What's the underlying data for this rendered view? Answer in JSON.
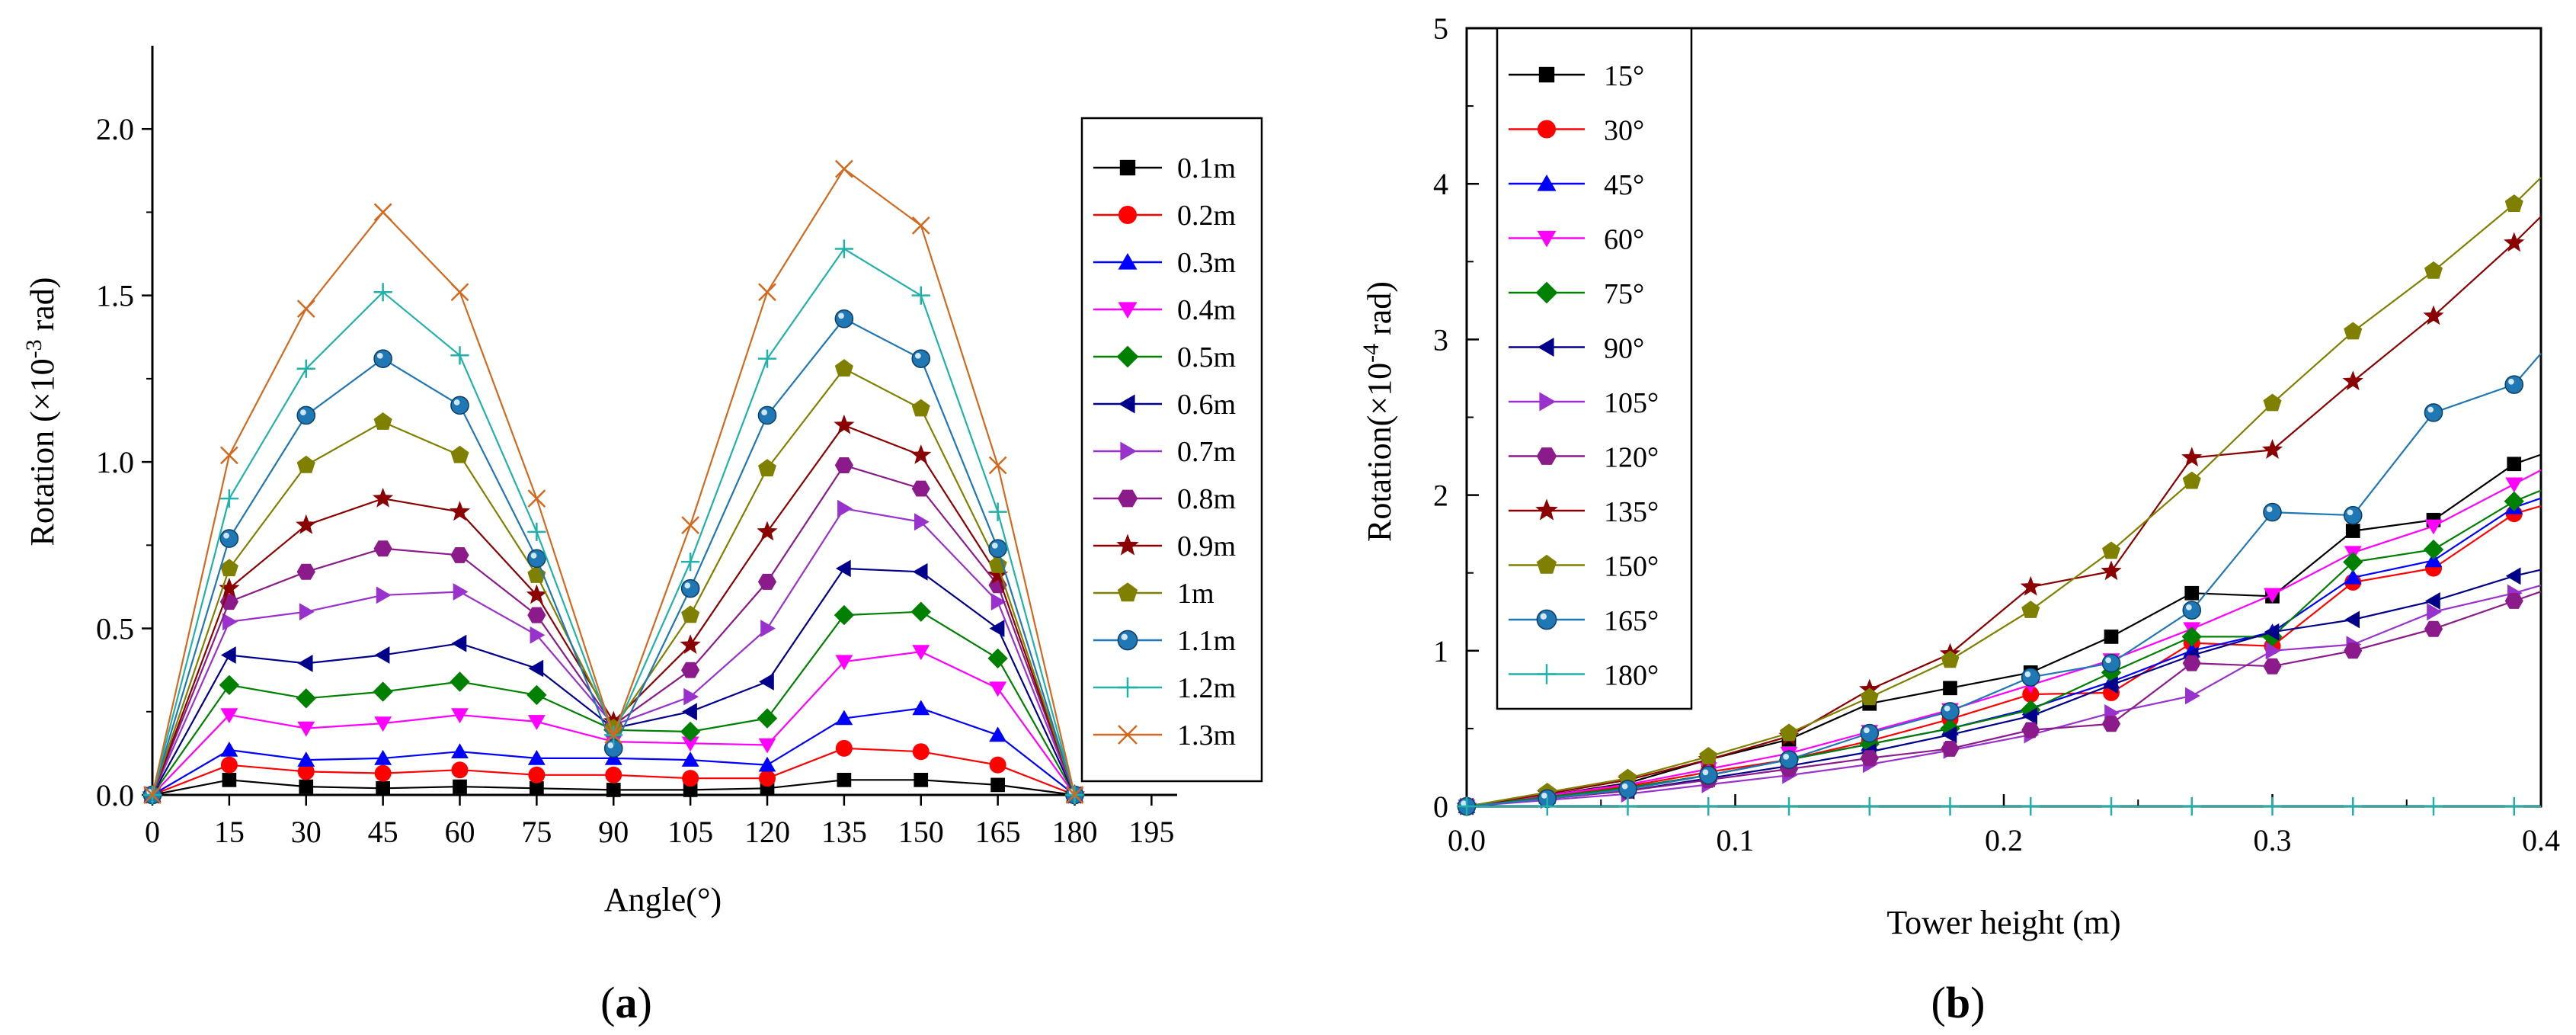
{
  "chart_data": [
    {
      "panel": "a",
      "type": "line",
      "xlabel": "Angle(°)",
      "ylabel_pre": "Rotation (×10",
      "ylabel_exp": "-3",
      "ylabel_post": " rad)",
      "xlim": [
        0,
        200
      ],
      "ylim": [
        0,
        2.25
      ],
      "xticks": [
        0,
        15,
        30,
        45,
        60,
        75,
        90,
        105,
        120,
        135,
        150,
        165,
        180,
        195
      ],
      "xtick_labels": [
        "0",
        "15",
        "30",
        "45",
        "60",
        "75",
        "90",
        "105",
        "120",
        "135",
        "150",
        "165",
        "180",
        "195"
      ],
      "yticks": [
        0,
        0.5,
        1.0,
        1.5,
        2.0
      ],
      "ytick_labels": [
        "0.0",
        "0.5",
        "1.0",
        "1.5",
        "2.0"
      ],
      "legend_position": "right",
      "x": [
        0,
        15,
        30,
        45,
        60,
        75,
        90,
        105,
        120,
        135,
        150,
        165,
        180
      ],
      "series": [
        {
          "name": "0.1m",
          "color": "#000000",
          "marker": "square",
          "values": [
            0,
            0.045,
            0.025,
            0.02,
            0.025,
            0.02,
            0.015,
            0.015,
            0.02,
            0.045,
            0.045,
            0.03,
            0
          ]
        },
        {
          "name": "0.2m",
          "color": "#ff0000",
          "marker": "circle",
          "values": [
            0,
            0.09,
            0.07,
            0.065,
            0.075,
            0.06,
            0.06,
            0.05,
            0.05,
            0.14,
            0.13,
            0.09,
            0
          ]
        },
        {
          "name": "0.3m",
          "color": "#0000ff",
          "marker": "triangle-up",
          "values": [
            0,
            0.135,
            0.105,
            0.11,
            0.13,
            0.11,
            0.11,
            0.105,
            0.09,
            0.23,
            0.26,
            0.18,
            0
          ]
        },
        {
          "name": "0.4m",
          "color": "#ff00ff",
          "marker": "triangle-down",
          "values": [
            0,
            0.24,
            0.2,
            0.215,
            0.24,
            0.22,
            0.16,
            0.155,
            0.15,
            0.4,
            0.43,
            0.32,
            0
          ]
        },
        {
          "name": "0.5m",
          "color": "#008000",
          "marker": "diamond",
          "values": [
            0,
            0.33,
            0.29,
            0.31,
            0.34,
            0.3,
            0.195,
            0.19,
            0.23,
            0.54,
            0.55,
            0.41,
            0
          ]
        },
        {
          "name": "0.6m",
          "color": "#00008b",
          "marker": "triangle-left",
          "values": [
            0,
            0.42,
            0.395,
            0.42,
            0.455,
            0.38,
            0.2,
            0.25,
            0.34,
            0.68,
            0.67,
            0.5,
            0
          ]
        },
        {
          "name": "0.7m",
          "color": "#9932cc",
          "marker": "triangle-right",
          "values": [
            0,
            0.52,
            0.55,
            0.6,
            0.61,
            0.48,
            0.21,
            0.295,
            0.5,
            0.86,
            0.82,
            0.58,
            0
          ]
        },
        {
          "name": "0.8m",
          "color": "#8b1a8b",
          "marker": "hexagon",
          "values": [
            0,
            0.58,
            0.67,
            0.74,
            0.72,
            0.54,
            0.21,
            0.375,
            0.64,
            0.99,
            0.92,
            0.63,
            0
          ]
        },
        {
          "name": "0.9m",
          "color": "#8b0000",
          "marker": "star",
          "values": [
            0,
            0.62,
            0.81,
            0.89,
            0.85,
            0.6,
            0.22,
            0.45,
            0.79,
            1.11,
            1.02,
            0.66,
            0
          ]
        },
        {
          "name": "1m",
          "color": "#808000",
          "marker": "pentagon",
          "values": [
            0,
            0.68,
            0.99,
            1.12,
            1.02,
            0.66,
            0.2,
            0.54,
            0.98,
            1.28,
            1.16,
            0.69,
            0
          ]
        },
        {
          "name": "1.1m",
          "color": "#1f77b4",
          "marker": "sphere",
          "values": [
            0,
            0.77,
            1.14,
            1.31,
            1.17,
            0.71,
            0.14,
            0.62,
            1.14,
            1.43,
            1.31,
            0.74,
            0
          ]
        },
        {
          "name": "1.2m",
          "color": "#20b2aa",
          "marker": "plus",
          "values": [
            0,
            0.89,
            1.28,
            1.51,
            1.32,
            0.79,
            0.18,
            0.7,
            1.31,
            1.64,
            1.5,
            0.85,
            0
          ]
        },
        {
          "name": "1.3m",
          "color": "#d2691e",
          "marker": "x",
          "values": [
            0,
            1.02,
            1.46,
            1.75,
            1.51,
            0.89,
            0.18,
            0.81,
            1.51,
            1.88,
            1.71,
            0.99,
            0
          ]
        }
      ]
    },
    {
      "panel": "b",
      "type": "line",
      "xlabel": "Tower height (m)",
      "ylabel_pre": "Rotation(×10",
      "ylabel_exp": "-4",
      "ylabel_post": " rad)",
      "xlim": [
        0,
        0.4
      ],
      "ylim": [
        0,
        5
      ],
      "xticks": [
        0,
        0.1,
        0.2,
        0.3,
        0.4
      ],
      "xtick_labels": [
        "0.0",
        "0.1",
        "0.2",
        "0.3",
        "0.4"
      ],
      "yticks": [
        0,
        1,
        2,
        3,
        4,
        5
      ],
      "ytick_labels": [
        "0",
        "1",
        "2",
        "3",
        "4",
        "5"
      ],
      "legend_position": "top-left",
      "x": [
        0,
        0.03,
        0.06,
        0.09,
        0.12,
        0.15,
        0.18,
        0.21,
        0.24,
        0.27,
        0.3,
        0.33,
        0.36,
        0.39,
        0.4
      ],
      "series": [
        {
          "name": "15°",
          "color": "#000000",
          "marker": "square",
          "values": [
            0,
            0.07,
            0.15,
            0.3,
            0.43,
            0.66,
            0.76,
            0.86,
            1.09,
            1.37,
            1.35,
            1.77,
            1.84,
            2.2,
            2.26
          ]
        },
        {
          "name": "30°",
          "color": "#ff0000",
          "marker": "circle",
          "values": [
            0,
            0.06,
            0.13,
            0.22,
            0.3,
            0.42,
            0.56,
            0.72,
            0.73,
            1.05,
            1.03,
            1.44,
            1.53,
            1.88,
            1.93
          ]
        },
        {
          "name": "45°",
          "color": "#0000ff",
          "marker": "triangle-up",
          "values": [
            0,
            0.06,
            0.12,
            0.2,
            0.3,
            0.4,
            0.5,
            0.63,
            0.8,
            1.0,
            1.12,
            1.47,
            1.58,
            1.92,
            1.98
          ]
        },
        {
          "name": "60°",
          "color": "#ff00ff",
          "marker": "triangle-down",
          "values": [
            0,
            0.07,
            0.14,
            0.24,
            0.34,
            0.48,
            0.62,
            0.78,
            0.94,
            1.14,
            1.36,
            1.63,
            1.8,
            2.07,
            2.16
          ]
        },
        {
          "name": "75°",
          "color": "#008000",
          "marker": "diamond",
          "values": [
            0,
            0.06,
            0.12,
            0.2,
            0.3,
            0.4,
            0.5,
            0.62,
            0.86,
            1.09,
            1.09,
            1.57,
            1.65,
            1.96,
            2.03
          ]
        },
        {
          "name": "90°",
          "color": "#00008b",
          "marker": "triangle-left",
          "values": [
            0,
            0.05,
            0.1,
            0.18,
            0.26,
            0.35,
            0.46,
            0.58,
            0.78,
            0.97,
            1.12,
            1.2,
            1.32,
            1.48,
            1.52
          ]
        },
        {
          "name": "105°",
          "color": "#9932cc",
          "marker": "triangle-right",
          "values": [
            0,
            0.04,
            0.08,
            0.14,
            0.2,
            0.27,
            0.36,
            0.46,
            0.6,
            0.71,
            1.0,
            1.04,
            1.25,
            1.37,
            1.42
          ]
        },
        {
          "name": "120°",
          "color": "#8b1a8b",
          "marker": "hexagon",
          "values": [
            0,
            0.05,
            0.1,
            0.17,
            0.24,
            0.31,
            0.37,
            0.49,
            0.53,
            0.92,
            0.9,
            1.0,
            1.14,
            1.32,
            1.38
          ]
        },
        {
          "name": "135°",
          "color": "#8b0000",
          "marker": "star",
          "values": [
            0,
            0.08,
            0.17,
            0.3,
            0.45,
            0.75,
            0.98,
            1.41,
            1.51,
            2.24,
            2.29,
            2.73,
            3.15,
            3.62,
            3.79
          ]
        },
        {
          "name": "150°",
          "color": "#808000",
          "marker": "pentagon",
          "values": [
            0,
            0.09,
            0.18,
            0.32,
            0.47,
            0.7,
            0.94,
            1.26,
            1.64,
            2.09,
            2.59,
            3.05,
            3.44,
            3.87,
            4.04
          ]
        },
        {
          "name": "165°",
          "color": "#1f77b4",
          "marker": "sphere",
          "values": [
            0,
            0.05,
            0.11,
            0.2,
            0.3,
            0.47,
            0.61,
            0.83,
            0.92,
            1.26,
            1.89,
            1.87,
            2.53,
            2.71,
            2.91
          ]
        },
        {
          "name": "180°",
          "color": "#20b2aa",
          "marker": "plus",
          "values": [
            0,
            0,
            0,
            0,
            0,
            0,
            0,
            0,
            0,
            0,
            0,
            0,
            0,
            0,
            0
          ]
        }
      ]
    }
  ],
  "panels": {
    "a": {
      "label": "a",
      "open": "(",
      "close": ")"
    },
    "b": {
      "label": "b",
      "open": "(",
      "close": ")"
    }
  }
}
